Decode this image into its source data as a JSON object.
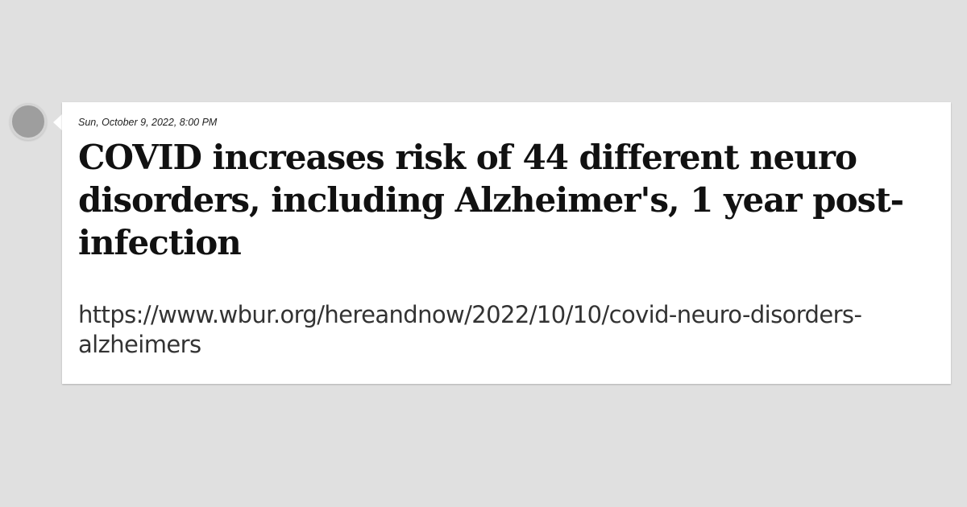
{
  "post": {
    "timestamp": "Sun, October 9, 2022, 8:00 PM",
    "title": "COVID increases risk of 44 different neuro disorders, including Alzheimer's, 1 year post-infection",
    "url_line1": "https://www.wbur.org/hereandnow/2022/10/10/covid-neuro-disorders-",
    "url_line2": "alzheimers"
  },
  "colors": {
    "page_background": "#e0e0e0",
    "card_background": "#ffffff",
    "avatar": "#9e9e9e"
  }
}
